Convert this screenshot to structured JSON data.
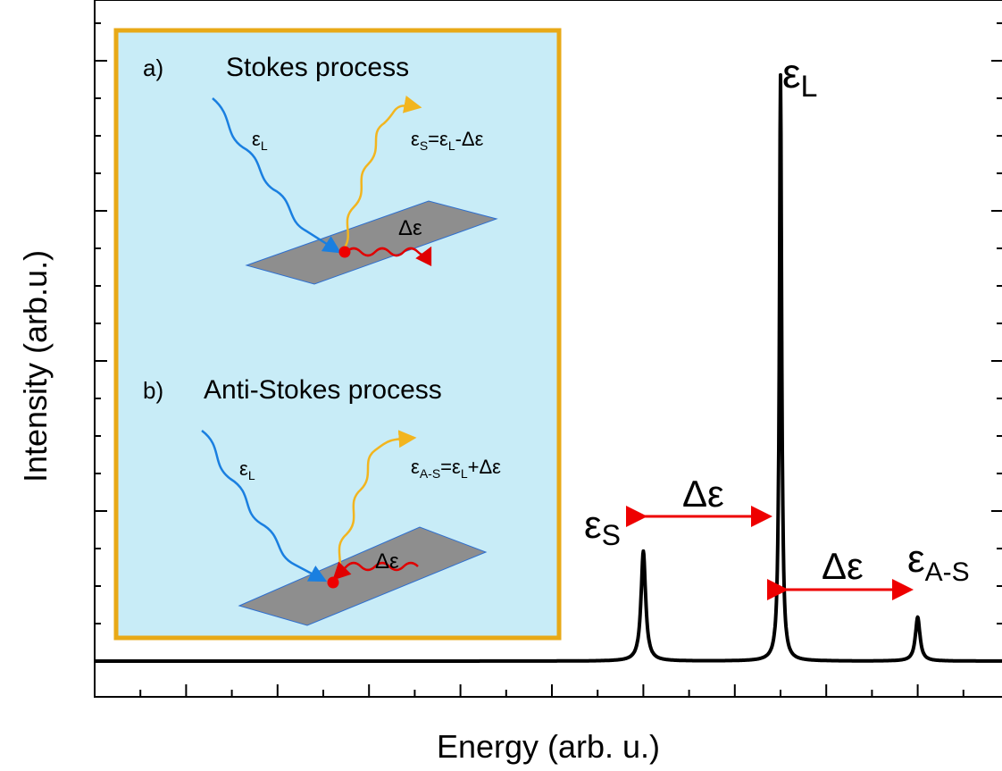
{
  "axes": {
    "xlabel": "Energy (arb. u.)",
    "ylabel": "Intensity (arb.u.)"
  },
  "chart_data": {
    "type": "line",
    "title": "",
    "xlabel": "Energy (arb. u.)",
    "ylabel": "Intensity (arb.u.)",
    "grid": false,
    "series": [
      {
        "peaks": [
          {
            "label": "ε_S",
            "x": 0.6,
            "height": 0.15
          },
          {
            "label": "ε_L",
            "x": 0.75,
            "height": 0.8
          },
          {
            "label": "ε_A-S",
            "x": 0.9,
            "height": 0.06
          }
        ]
      }
    ],
    "annotations": [
      "Δε",
      "Δε"
    ]
  },
  "peaks": {
    "stokes_symbol": "ε",
    "stokes_sub": "S",
    "laser_symbol": "ε",
    "laser_sub": "L",
    "antistokes_symbol": "ε",
    "antistokes_sub": "A-S",
    "delta_left": "Δε",
    "delta_right": "Δε"
  },
  "inset": {
    "a_label": "a)",
    "a_title": "Stokes process",
    "a_in_sym": "ε",
    "a_in_sub": "L",
    "a_out_eq": [
      "ε",
      "S",
      "=ε",
      "L",
      "-Δε"
    ],
    "a_phonon": "Δε",
    "b_label": "b)",
    "b_title": "Anti-Stokes process",
    "b_in_sym": "ε",
    "b_in_sub": "L",
    "b_out_eq": [
      "ε",
      "A-S",
      "=ε",
      "L",
      "+Δε"
    ],
    "b_phonon": "Δε"
  },
  "colors": {
    "inset_bg": "#c8ecf7",
    "inset_border": "#e8a917",
    "laser_wave": "#1a7fe0",
    "scattered_wave": "#f2b51f",
    "phonon": "#e00000",
    "surface": "#8e8e8e",
    "arrow": "#ee0000"
  }
}
